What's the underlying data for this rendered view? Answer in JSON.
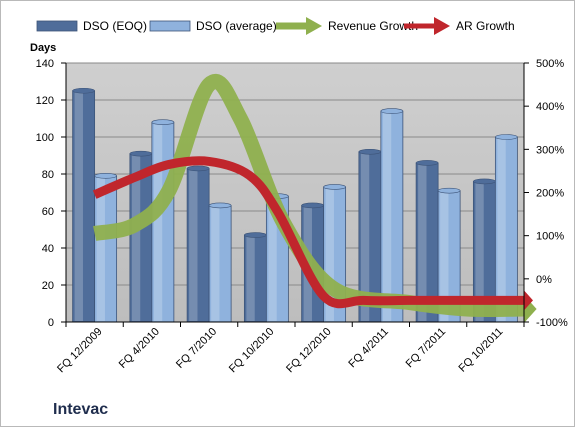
{
  "chart_data": {
    "type": "bar",
    "title": "",
    "company": "Intevac",
    "ylabel": "Days",
    "y2label": "",
    "categories": [
      "FQ 12/2009",
      "FQ 4/2010",
      "FQ 7/2010",
      "FQ 10/2010",
      "FQ 12/2010",
      "FQ 4/2011",
      "FQ 7/2011",
      "FQ 10/2011"
    ],
    "ylim": [
      0,
      140
    ],
    "y_ticks": [
      0,
      20,
      40,
      60,
      80,
      100,
      120,
      140
    ],
    "y2lim": [
      -100,
      500
    ],
    "y2_ticks": [
      "-100%",
      "0%",
      "100%",
      "200%",
      "300%",
      "400%",
      "500%"
    ],
    "y2_tick_values": [
      -100,
      0,
      100,
      200,
      300,
      400,
      500
    ],
    "grid": true,
    "legend_position": "top",
    "series": [
      {
        "name": "DSO (EOQ)",
        "kind": "bar",
        "color": "#4f6d9a",
        "values": [
          125,
          91,
          83,
          47,
          63,
          92,
          86,
          76
        ]
      },
      {
        "name": "DSO (average)",
        "kind": "bar",
        "color": "#8fb2dd",
        "values": [
          79,
          108,
          63,
          68,
          73,
          114,
          71,
          100
        ]
      },
      {
        "name": "Revenue Growth",
        "kind": "arrow-line",
        "axis": "secondary",
        "color": "#8fb04e",
        "x": [
          0,
          0.7,
          1.3,
          2.0,
          2.55,
          3.3,
          4.2,
          5.5,
          6.5,
          7.5
        ],
        "values": [
          105,
          125,
          205,
          450,
          370,
          130,
          -25,
          -55,
          -70,
          -70
        ]
      },
      {
        "name": "AR Growth",
        "kind": "arrow-line",
        "axis": "secondary",
        "color": "#c0262c",
        "x": [
          0,
          0.7,
          1.3,
          2.0,
          2.7,
          3.2,
          4.0,
          4.7,
          5.5,
          6.3,
          7.5
        ],
        "values": [
          195,
          235,
          265,
          272,
          240,
          155,
          -40,
          -50,
          -50,
          -50,
          -50
        ]
      }
    ]
  }
}
